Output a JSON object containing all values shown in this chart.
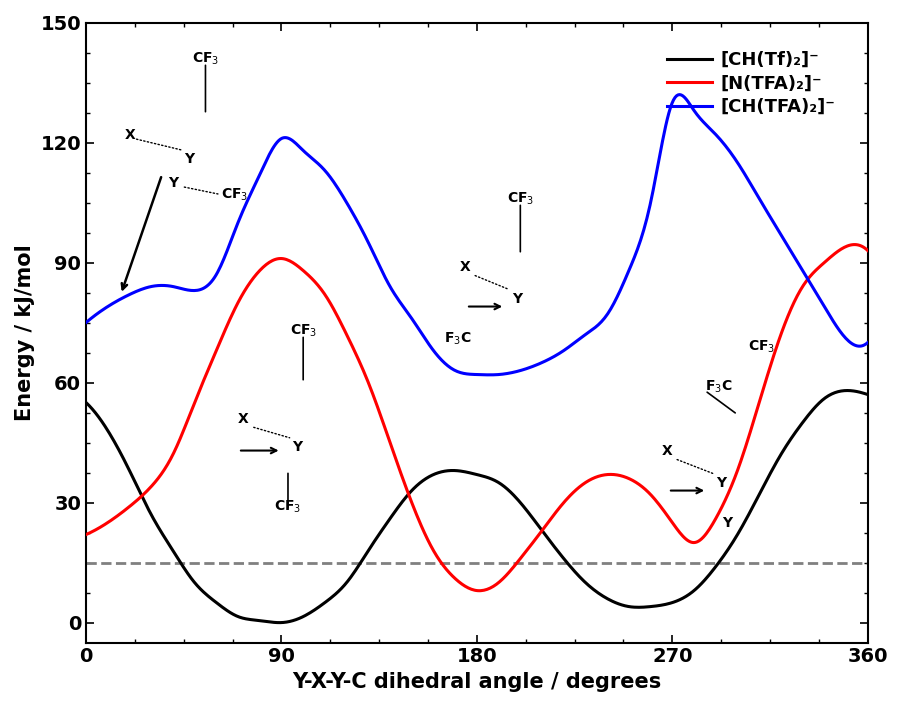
{
  "title": "",
  "xlabel": "Y-X-Y-C dihedral angle / degrees",
  "ylabel": "Energy / kJ/mol",
  "xlim": [
    0,
    360
  ],
  "ylim": [
    -5,
    150
  ],
  "xticks": [
    0,
    90,
    180,
    270,
    360
  ],
  "yticks": [
    0,
    30,
    60,
    90,
    120,
    150
  ],
  "dashed_line_y": 15,
  "legend_labels": [
    "[CH(Tf)₂]⁻",
    "[N(TFA)₂]⁻",
    "[CH(TFA)₂]⁻"
  ],
  "legend_colors": [
    "black",
    "red",
    "blue"
  ],
  "figsize": [
    9.03,
    7.07
  ],
  "dpi": 100,
  "black_curve": {
    "x": [
      0,
      10,
      20,
      30,
      40,
      50,
      60,
      70,
      80,
      90,
      100,
      110,
      120,
      130,
      140,
      150,
      160,
      170,
      180,
      190,
      200,
      210,
      220,
      230,
      240,
      250,
      260,
      270,
      280,
      290,
      300,
      310,
      320,
      330,
      340,
      350,
      360
    ],
    "y": [
      55,
      48,
      38,
      27,
      18,
      10,
      5,
      1.5,
      0.5,
      0,
      1.5,
      5,
      10,
      18,
      26,
      33,
      37,
      38,
      37,
      35,
      30,
      23,
      16,
      10,
      6,
      4,
      4,
      5,
      8,
      14,
      22,
      32,
      42,
      50,
      56,
      58,
      57
    ]
  },
  "red_curve": {
    "x": [
      0,
      10,
      20,
      30,
      40,
      50,
      60,
      70,
      80,
      90,
      100,
      110,
      120,
      130,
      140,
      150,
      160,
      170,
      180,
      190,
      200,
      210,
      220,
      230,
      240,
      250,
      260,
      270,
      280,
      290,
      300,
      310,
      320,
      330,
      340,
      350,
      360
    ],
    "y": [
      22,
      25,
      29,
      34,
      42,
      55,
      68,
      80,
      88,
      91,
      88,
      82,
      72,
      60,
      45,
      30,
      18,
      11,
      8,
      10,
      16,
      23,
      30,
      35,
      37,
      36,
      32,
      25,
      20,
      26,
      38,
      55,
      72,
      84,
      90,
      94,
      93
    ]
  },
  "blue_curve": {
    "x": [
      0,
      10,
      20,
      30,
      40,
      50,
      60,
      70,
      80,
      90,
      100,
      110,
      120,
      130,
      140,
      150,
      160,
      170,
      180,
      190,
      200,
      210,
      220,
      230,
      240,
      250,
      260,
      270,
      280,
      290,
      300,
      310,
      320,
      330,
      340,
      350,
      360
    ],
    "y": [
      75,
      79,
      82,
      84,
      84,
      83,
      87,
      100,
      112,
      121,
      118,
      113,
      105,
      95,
      84,
      76,
      68,
      63,
      62,
      62,
      63,
      65,
      68,
      72,
      77,
      88,
      105,
      130,
      128,
      122,
      115,
      106,
      97,
      88,
      79,
      71,
      70
    ]
  }
}
